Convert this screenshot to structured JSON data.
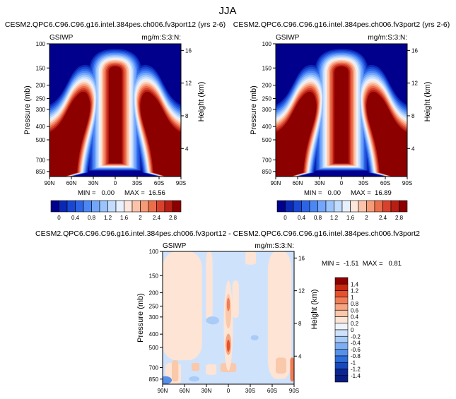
{
  "main_title": "JJA",
  "chart_data": [
    {
      "type": "heatmap",
      "title": "CESM2.QPC6.C96.C96.g16.intel.384pes.ch006.fv3port12 (yrs 2-6)",
      "left_label": "GSIWP",
      "right_label": "mg/m:S:3:N:",
      "ylabel": "Pressure (mb)",
      "ylabel_right": "Height (km)",
      "pressure_ticks": [
        "100",
        "150",
        "200",
        "250",
        "300",
        "400",
        "500",
        "700",
        "850"
      ],
      "height_ticks": [
        "4",
        "8",
        "12",
        "16"
      ],
      "lat_ticks": [
        "90N",
        "60N",
        "30N",
        "0",
        "30S",
        "60S",
        "90S"
      ],
      "min_text": "MIN =   0.00",
      "max_text": "MAX =  16.56",
      "min": 0.0,
      "max": 16.56,
      "colorbar_labels": [
        "0",
        "0.4",
        "0.8",
        "1.2",
        "1.6",
        "2",
        "2.4",
        "2.8"
      ],
      "contour_levels": [
        0,
        0.2,
        0.4,
        0.6,
        0.8,
        1.0,
        1.2,
        1.4,
        1.6,
        1.8,
        2.0,
        2.2,
        2.4,
        2.6,
        2.8,
        3.0
      ]
    },
    {
      "type": "heatmap",
      "title": "CESM2.QPC6.C96.C96.g16.intel.384pes.ch006.fv3port2 (yrs 2-6)",
      "left_label": "GSIWP",
      "right_label": "mg/m:S:3:N:",
      "ylabel": "Pressure (mb)",
      "ylabel_right": "Height (km)",
      "pressure_ticks": [
        "100",
        "150",
        "200",
        "250",
        "300",
        "400",
        "500",
        "700",
        "850"
      ],
      "height_ticks": [
        "4",
        "8",
        "12",
        "16"
      ],
      "lat_ticks": [
        "90N",
        "60N",
        "30N",
        "0",
        "30S",
        "60S",
        "90S"
      ],
      "min_text": "MIN =   0.00",
      "max_text": "MAX =  16.89",
      "min": 0.0,
      "max": 16.89,
      "colorbar_labels": [
        "0",
        "0.4",
        "0.8",
        "1.2",
        "1.6",
        "2",
        "2.4",
        "2.8"
      ],
      "contour_levels": [
        0,
        0.2,
        0.4,
        0.6,
        0.8,
        1.0,
        1.2,
        1.4,
        1.6,
        1.8,
        2.0,
        2.2,
        2.4,
        2.6,
        2.8,
        3.0
      ]
    },
    {
      "type": "heatmap",
      "title": "CESM2.QPC6.C96.C96.g16.intel.384pes.ch006.fv3port12 - CESM2.QPC6.C96.C96.g16.intel.384pes.ch006.fv3port2",
      "left_label": "GSIWP",
      "right_label": "mg/m:S:3:N:",
      "ylabel": "Pressure (mb)",
      "ylabel_right": "Height (km)",
      "pressure_ticks": [
        "100",
        "150",
        "200",
        "250",
        "300",
        "400",
        "500",
        "700",
        "850"
      ],
      "height_ticks": [
        "4",
        "8",
        "12",
        "16"
      ],
      "lat_ticks": [
        "90N",
        "60N",
        "30N",
        "0",
        "30S",
        "60S",
        "90S"
      ],
      "minmax_text": "MIN =  -1.51  MAX =   0.81",
      "min": -1.51,
      "max": 0.81,
      "colorbar_labels": [
        "1.4",
        "1.2",
        "1",
        "0.8",
        "0.6",
        "0.4",
        "0.2",
        "0",
        "-0.2",
        "-0.4",
        "-0.6",
        "-0.8",
        "-1",
        "-1.2",
        "-1.4"
      ],
      "contour_levels": [
        -1.4,
        -1.2,
        -1.0,
        -0.8,
        -0.6,
        -0.4,
        -0.2,
        0,
        0.2,
        0.4,
        0.6,
        0.8,
        1.0,
        1.2,
        1.4
      ]
    }
  ],
  "colors": {
    "seq": [
      "#00008c",
      "#0a28b4",
      "#1946d2",
      "#2d64e6",
      "#4b87f5",
      "#73a5fa",
      "#9bc3fc",
      "#c3dcfd",
      "#e6f0fe",
      "#fde6dc",
      "#fbc3aa",
      "#f59b78",
      "#eb6e4b",
      "#d7412d",
      "#b91e14",
      "#8c0000"
    ],
    "div": [
      "#8c0000",
      "#c8280f",
      "#e6502d",
      "#f07d55",
      "#f5a582",
      "#fac8aa",
      "#fde4d4",
      "#eef4fe",
      "#cfe2fc",
      "#a8cbf8",
      "#7eaef2",
      "#5690ea",
      "#2e6edc",
      "#1748bd",
      "#0c2596"
    ]
  }
}
